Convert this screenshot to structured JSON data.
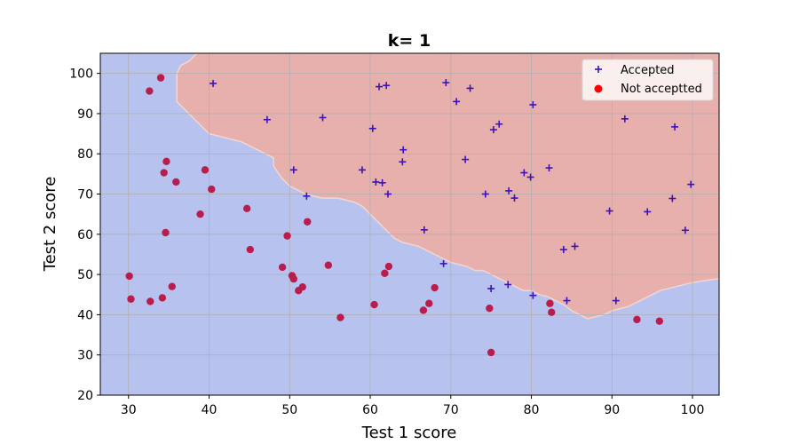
{
  "chart_data": {
    "type": "scatter",
    "title": "k= 1",
    "xlabel": "Test 1 score",
    "ylabel": "Test 2 score",
    "xlim": [
      26.5,
      103.3
    ],
    "ylim": [
      20,
      105
    ],
    "xticks": [
      30,
      40,
      50,
      60,
      70,
      80,
      90,
      100
    ],
    "yticks": [
      20,
      30,
      40,
      50,
      60,
      70,
      80,
      90,
      100
    ],
    "grid": true,
    "legend_position": "top-right",
    "region_colors": {
      "accepted": "#e8b0ac",
      "not_accepted": "#b7c3ee"
    },
    "decision_boundary": [
      [
        26.5,
        105
      ],
      [
        26.5,
        105
      ],
      [
        38.5,
        105
      ],
      [
        37.5,
        103
      ],
      [
        36.5,
        102
      ],
      [
        36,
        100
      ],
      [
        36,
        93
      ],
      [
        37,
        91
      ],
      [
        38,
        89
      ],
      [
        39,
        87
      ],
      [
        40,
        85
      ],
      [
        42,
        84
      ],
      [
        44,
        83
      ],
      [
        46,
        81
      ],
      [
        48,
        79
      ],
      [
        48,
        77
      ],
      [
        49,
        74
      ],
      [
        50,
        72
      ],
      [
        52,
        70
      ],
      [
        54,
        69
      ],
      [
        56,
        69
      ],
      [
        58,
        68
      ],
      [
        59,
        67
      ],
      [
        60,
        65
      ],
      [
        61,
        63
      ],
      [
        62,
        61
      ],
      [
        63,
        59
      ],
      [
        64,
        58
      ],
      [
        66,
        57
      ],
      [
        67,
        56
      ],
      [
        68,
        55
      ],
      [
        69,
        54
      ],
      [
        70,
        53
      ],
      [
        72,
        52
      ],
      [
        73,
        51
      ],
      [
        74,
        51
      ],
      [
        75,
        50
      ],
      [
        76,
        49
      ],
      [
        77,
        48
      ],
      [
        78,
        47
      ],
      [
        79,
        46
      ],
      [
        80,
        46
      ],
      [
        81,
        45
      ],
      [
        82,
        44.5
      ],
      [
        83,
        43.5
      ],
      [
        84,
        42.5
      ],
      [
        85,
        41
      ],
      [
        86,
        40
      ],
      [
        87,
        39
      ],
      [
        88,
        39.5
      ],
      [
        89,
        40
      ],
      [
        90,
        41
      ],
      [
        92,
        42
      ],
      [
        94,
        44
      ],
      [
        96,
        46
      ],
      [
        98,
        47
      ],
      [
        100,
        48
      ],
      [
        103.3,
        49
      ],
      [
        103.3,
        105
      ]
    ],
    "series": [
      {
        "name": "Accepted",
        "marker": "+",
        "color": "#3b12b8",
        "points": [
          [
            40.5,
            97.5
          ],
          [
            47.2,
            88.5
          ],
          [
            50.5,
            76
          ],
          [
            52.1,
            69.5
          ],
          [
            54.1,
            89
          ],
          [
            59,
            76
          ],
          [
            60.3,
            86.3
          ],
          [
            60.7,
            73
          ],
          [
            61.1,
            96.7
          ],
          [
            61.5,
            72.8
          ],
          [
            62,
            97
          ],
          [
            62.2,
            70
          ],
          [
            64,
            78
          ],
          [
            64.1,
            81
          ],
          [
            66.7,
            61.1
          ],
          [
            69.1,
            52.7
          ],
          [
            69.4,
            97.7
          ],
          [
            70.7,
            93
          ],
          [
            71.8,
            78.6
          ],
          [
            72.4,
            96.3
          ],
          [
            74.3,
            70
          ],
          [
            75.3,
            86
          ],
          [
            76,
            87.4
          ],
          [
            77.2,
            70.8
          ],
          [
            77.1,
            47.5
          ],
          [
            77.9,
            69
          ],
          [
            75,
            46.5
          ],
          [
            79.1,
            75.3
          ],
          [
            79.9,
            74.2
          ],
          [
            80.2,
            92.2
          ],
          [
            80.2,
            44.8
          ],
          [
            82.2,
            76.5
          ],
          [
            84,
            56.2
          ],
          [
            84.4,
            43.5
          ],
          [
            85.4,
            57
          ],
          [
            89.7,
            65.8
          ],
          [
            90.5,
            43.5
          ],
          [
            91.6,
            88.7
          ],
          [
            94.4,
            65.6
          ],
          [
            97.5,
            68.9
          ],
          [
            97.8,
            86.7
          ],
          [
            99.1,
            61
          ],
          [
            99.8,
            72.4
          ]
        ]
      },
      {
        "name": "Not acceptted",
        "marker": "o",
        "color": "#b81d4e",
        "points": [
          [
            30.1,
            49.6
          ],
          [
            30.3,
            43.9
          ],
          [
            32.6,
            95.6
          ],
          [
            32.7,
            43.3
          ],
          [
            34,
            98.9
          ],
          [
            34.2,
            44.2
          ],
          [
            34.4,
            75.3
          ],
          [
            34.6,
            60.4
          ],
          [
            34.7,
            78.1
          ],
          [
            35.4,
            47
          ],
          [
            35.9,
            73
          ],
          [
            38.9,
            65
          ],
          [
            39.5,
            76
          ],
          [
            40.3,
            71.2
          ],
          [
            44.7,
            66.4
          ],
          [
            45.1,
            56.2
          ],
          [
            49.1,
            51.8
          ],
          [
            49.7,
            59.6
          ],
          [
            50.3,
            49.7
          ],
          [
            50.5,
            48.9
          ],
          [
            51.1,
            46
          ],
          [
            51.6,
            46.9
          ],
          [
            52.2,
            63.1
          ],
          [
            54.8,
            52.3
          ],
          [
            56.3,
            39.3
          ],
          [
            60.5,
            42.5
          ],
          [
            61.8,
            50.3
          ],
          [
            62.3,
            52
          ],
          [
            66.6,
            41.1
          ],
          [
            67.3,
            42.8
          ],
          [
            68,
            46.7
          ],
          [
            74.8,
            41.6
          ],
          [
            75,
            30.6
          ],
          [
            82.3,
            42.8
          ],
          [
            82.5,
            40.6
          ],
          [
            93.1,
            38.8
          ],
          [
            95.9,
            38.4
          ]
        ]
      }
    ]
  }
}
